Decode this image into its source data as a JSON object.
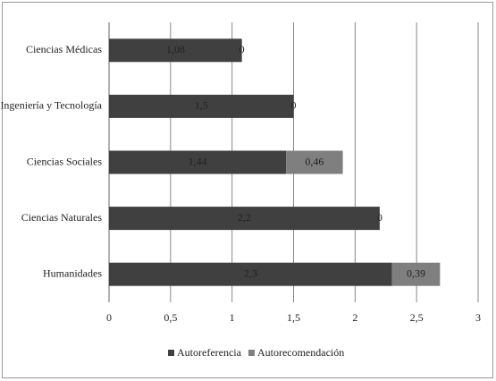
{
  "chart_data": {
    "type": "stacked-bar-horizontal",
    "categories": [
      "Ciencias Médicas",
      "Ingeniería y Tecnología",
      "Ciencias Sociales",
      "Ciencias Naturales",
      "Humanidades"
    ],
    "series": [
      {
        "name": "Autoreferencia",
        "color": "#404040",
        "values": [
          1.08,
          1.5,
          1.44,
          2.2,
          2.3
        ],
        "value_labels": [
          "1,08",
          "1,5",
          "1,44",
          "2,2",
          "2,3"
        ]
      },
      {
        "name": "Autorecomendación",
        "color": "#7f7f7f",
        "values": [
          0,
          0,
          0.46,
          0,
          0.39
        ],
        "value_labels": [
          "0",
          "0",
          "0,46",
          "0",
          "0,39"
        ]
      }
    ],
    "xlim": [
      0,
      3
    ],
    "xticks": [
      0,
      {
        "value": 0.5,
        "label": "0,5"
      },
      1,
      {
        "value": 1.5,
        "label": "1,5"
      },
      2,
      {
        "value": 2.5,
        "label": "2,5"
      },
      3
    ],
    "grid": true,
    "legend": "bottom"
  }
}
